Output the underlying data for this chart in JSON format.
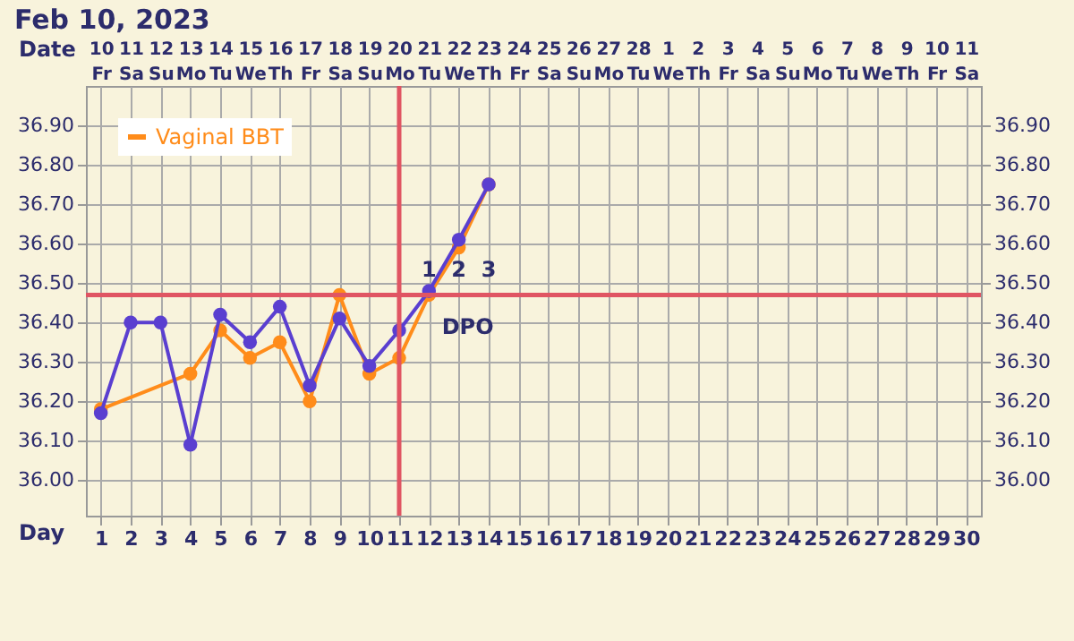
{
  "chart_data": {
    "type": "line",
    "title": "Feb 10, 2023",
    "xlabel": "Day",
    "x2label": "Date",
    "x": [
      1,
      2,
      3,
      4,
      5,
      6,
      7,
      8,
      9,
      10,
      11,
      12,
      13,
      14
    ],
    "xlim": [
      0.5,
      30.5
    ],
    "xticks": [
      1,
      2,
      3,
      4,
      5,
      6,
      7,
      8,
      9,
      10,
      11,
      12,
      13,
      14,
      15,
      16,
      17,
      18,
      19,
      20,
      21,
      22,
      23,
      24,
      25,
      26,
      27,
      28,
      29,
      30
    ],
    "x2lim": [
      "2023-02-09T12:00",
      "2023-03-11T12:00"
    ],
    "x2ticks": [
      {
        "value": "2023-02-10",
        "label": "10 Fr"
      },
      {
        "value": "2023-02-11",
        "label": "11 Sa"
      },
      {
        "value": "2023-02-12",
        "label": "12 Su"
      },
      {
        "value": "2023-02-13",
        "label": "13 Mo"
      },
      {
        "value": "2023-02-14",
        "label": "14 Tu"
      },
      {
        "value": "2023-02-15",
        "label": "15 We"
      },
      {
        "value": "2023-02-16",
        "label": "16 Th"
      },
      {
        "value": "2023-02-17",
        "label": "17 Fr"
      },
      {
        "value": "2023-02-18",
        "label": "18 Sa"
      },
      {
        "value": "2023-02-19",
        "label": "19 Su"
      },
      {
        "value": "2023-02-20",
        "label": "20 Mo"
      },
      {
        "value": "2023-02-21",
        "label": "21 Tu"
      },
      {
        "value": "2023-02-22",
        "label": "22 We"
      },
      {
        "value": "2023-02-23",
        "label": "23 Th"
      },
      {
        "value": "2023-02-24",
        "label": "24 Fr"
      },
      {
        "value": "2023-02-25",
        "label": "25 Sa"
      },
      {
        "value": "2023-02-26",
        "label": "26 Su"
      },
      {
        "value": "2023-02-27",
        "label": "27 Mo"
      },
      {
        "value": "2023-02-28",
        "label": "28 Tu"
      },
      {
        "value": "2023-03-01",
        "label": "1 We"
      },
      {
        "value": "2023-03-02",
        "label": "2 Th"
      },
      {
        "value": "2023-03-03",
        "label": "3 Fr"
      },
      {
        "value": "2023-03-04",
        "label": "4 Sa"
      },
      {
        "value": "2023-03-05",
        "label": "5 Su"
      },
      {
        "value": "2023-03-06",
        "label": "6 Mo"
      },
      {
        "value": "2023-03-07",
        "label": "7 Tu"
      },
      {
        "value": "2023-03-08",
        "label": "8 We"
      },
      {
        "value": "2023-03-09",
        "label": "9 Th"
      },
      {
        "value": "2023-03-10",
        "label": "10 Fr"
      },
      {
        "value": "2023-03-11",
        "label": "11 Sa"
      }
    ],
    "ylim": [
      35.91,
      37.0
    ],
    "yticks": [
      {
        "value": 36.0,
        "label": "36.00"
      },
      {
        "value": 36.1,
        "label": "36.10"
      },
      {
        "value": 36.2,
        "label": "36.20"
      },
      {
        "value": 36.3,
        "label": "36.30"
      },
      {
        "value": 36.4,
        "label": "36.40"
      },
      {
        "value": 36.5,
        "label": "36.50"
      },
      {
        "value": 36.6,
        "label": "36.60"
      },
      {
        "value": 36.7,
        "label": "36.70"
      },
      {
        "value": 36.8,
        "label": "36.80"
      },
      {
        "value": 36.9,
        "label": "36.90"
      }
    ],
    "y2lim": [
      35.91,
      37.0
    ],
    "y2ticks": [
      {
        "value": 36.0,
        "label": "36.00"
      },
      {
        "value": 36.1,
        "label": "36.10"
      },
      {
        "value": 36.2,
        "label": "36.20"
      },
      {
        "value": 36.3,
        "label": "36.30"
      },
      {
        "value": 36.4,
        "label": "36.40"
      },
      {
        "value": 36.5,
        "label": "36.50"
      },
      {
        "value": 36.6,
        "label": "36.60"
      },
      {
        "value": 36.7,
        "label": "36.70"
      },
      {
        "value": 36.8,
        "label": "36.80"
      },
      {
        "value": 36.9,
        "label": "36.90"
      }
    ],
    "series": [
      {
        "name": "Vaginal BBT",
        "color": "#ff8c1a",
        "values": [
          36.18,
          null,
          null,
          36.27,
          36.38,
          36.31,
          36.35,
          36.2,
          36.47,
          36.27,
          36.31,
          36.47,
          36.59,
          36.75
        ]
      },
      {
        "color": "#5a3fd0",
        "values": [
          36.17,
          36.4,
          36.4,
          36.09,
          36.42,
          36.35,
          36.44,
          36.24,
          36.41,
          36.29,
          36.38,
          36.48,
          36.61,
          36.75
        ]
      }
    ],
    "ref_lines": [
      {
        "axis": "x",
        "value": 11,
        "color": "#e05563"
      },
      {
        "axis": "y",
        "value": 36.47,
        "color": "#e05563"
      }
    ],
    "annotations": [
      "1",
      "2",
      "3",
      "DPO"
    ],
    "grid": true,
    "legend": "top left",
    "marker": "circle",
    "line_style": "solid"
  }
}
